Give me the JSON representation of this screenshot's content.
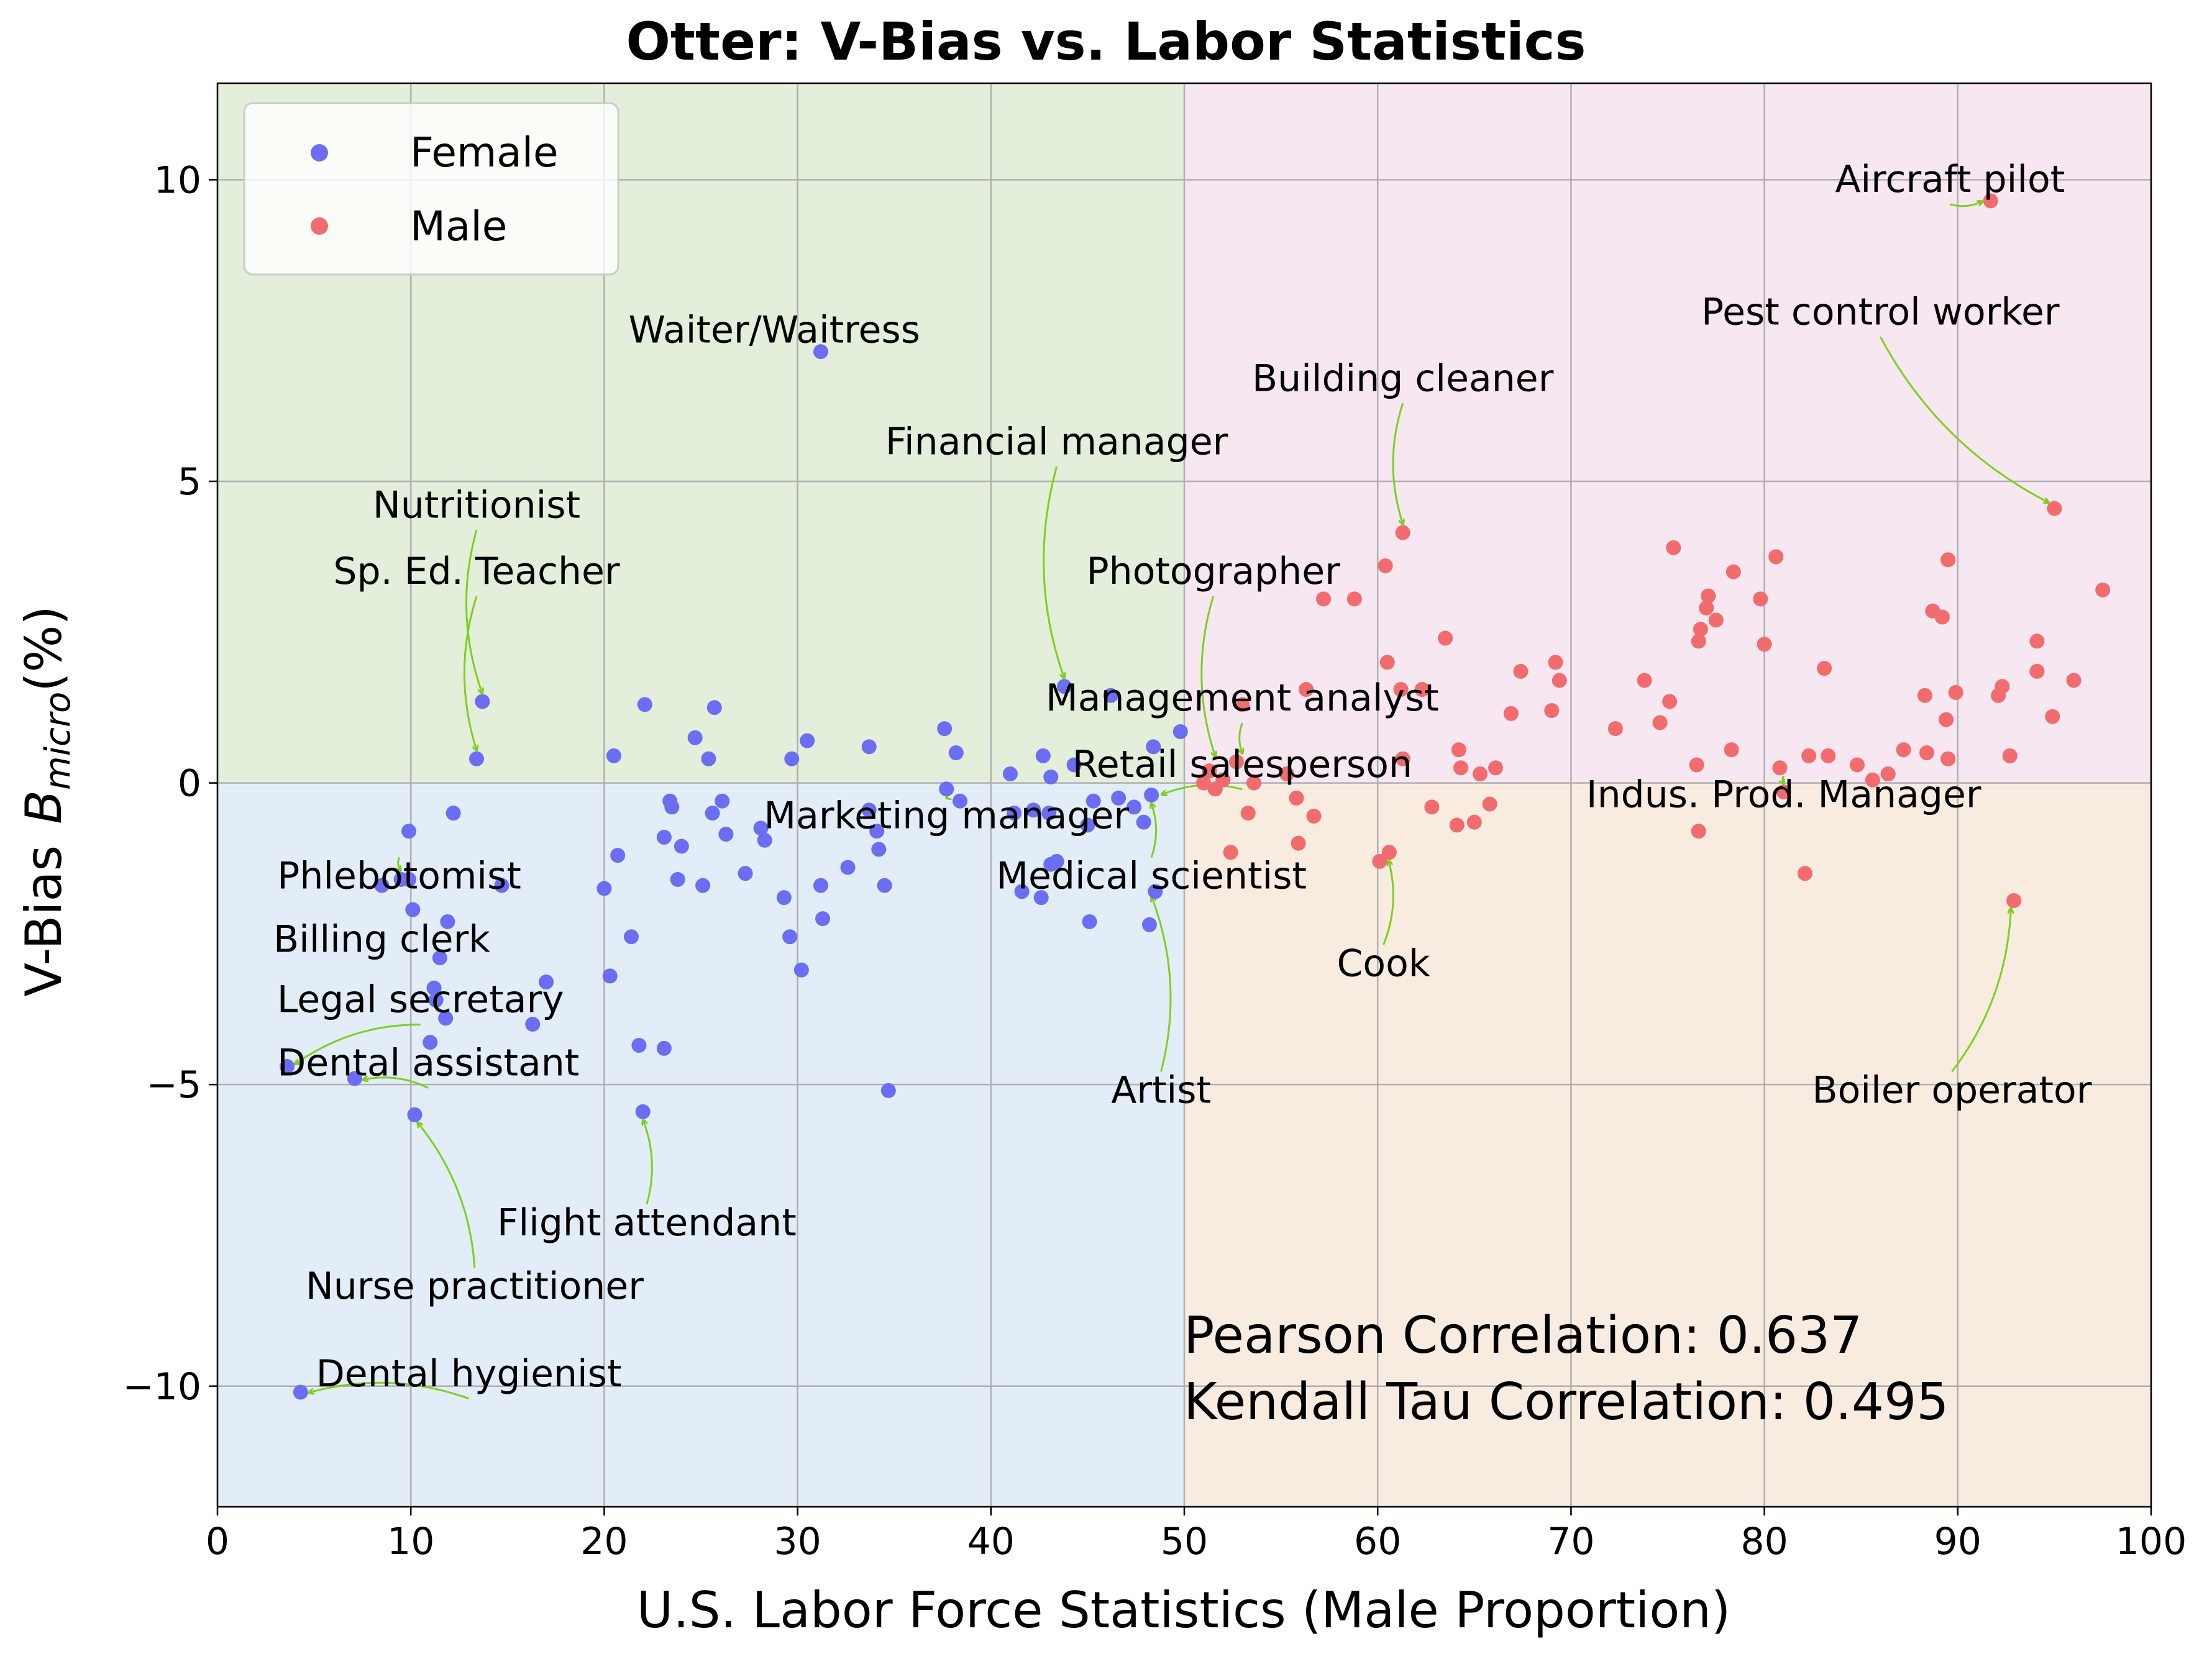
{
  "chart_data": {
    "type": "scatter",
    "title": "Otter: V-Bias vs. Labor Statistics",
    "xlabel": "U.S. Labor Force Statistics (Male Proportion)",
    "ylabel_text": "V-Bias",
    "ylabel_math_main": "B",
    "ylabel_math_sub": "micro",
    "ylabel_unit": "(%)",
    "xlim": [
      0,
      100
    ],
    "ylim": [
      -12,
      11.6
    ],
    "xticks": [
      0,
      10,
      20,
      30,
      40,
      50,
      60,
      70,
      80,
      90,
      100
    ],
    "yticks": [
      -10,
      -5,
      0,
      5,
      10
    ],
    "ytick_labels": [
      "−10",
      "−5",
      "0",
      "5",
      "10"
    ],
    "grid": true,
    "legend_position": "top-left",
    "quadrant_colors": {
      "upper_left": "#e3eedb",
      "upper_right": "#f6e7f0",
      "lower_left": "#e3edf7",
      "lower_right": "#f8ece0"
    },
    "annotation_arrow_color": "#7fcf1f",
    "stats": [
      "Pearson Correlation: 0.637",
      "Kendall Tau Correlation: 0.495"
    ],
    "series": [
      {
        "name": "Female",
        "color": "#6b6ef2",
        "points": [
          [
            4.3,
            -10.1
          ],
          [
            3.6,
            -4.7
          ],
          [
            7.1,
            -4.9
          ],
          [
            10.2,
            -5.5
          ],
          [
            8.5,
            -1.7
          ],
          [
            9.5,
            -1.6
          ],
          [
            9.9,
            -1.6
          ],
          [
            10.1,
            -2.1
          ],
          [
            9.9,
            -0.8
          ],
          [
            11.9,
            -2.3
          ],
          [
            12.2,
            -0.5
          ],
          [
            11.2,
            -3.4
          ],
          [
            11.3,
            -3.6
          ],
          [
            11.5,
            -2.9
          ],
          [
            11.8,
            -3.9
          ],
          [
            11.0,
            -4.3
          ],
          [
            13.4,
            0.4
          ],
          [
            13.7,
            1.35
          ],
          [
            14.7,
            -1.7
          ],
          [
            16.3,
            -4.0
          ],
          [
            17.0,
            -3.3
          ],
          [
            20.0,
            -1.75
          ],
          [
            20.3,
            -3.2
          ],
          [
            20.5,
            0.45
          ],
          [
            20.7,
            -1.2
          ],
          [
            21.4,
            -2.55
          ],
          [
            21.8,
            -4.35
          ],
          [
            22.0,
            -5.45
          ],
          [
            22.1,
            1.3
          ],
          [
            23.1,
            -0.9
          ],
          [
            23.1,
            -4.4
          ],
          [
            23.4,
            -0.3
          ],
          [
            23.5,
            -0.4
          ],
          [
            23.8,
            -1.6
          ],
          [
            24.0,
            -1.05
          ],
          [
            24.7,
            0.75
          ],
          [
            25.1,
            -1.7
          ],
          [
            25.4,
            0.4
          ],
          [
            25.6,
            -0.5
          ],
          [
            25.7,
            1.25
          ],
          [
            26.1,
            -0.3
          ],
          [
            26.3,
            -0.85
          ],
          [
            27.3,
            -1.5
          ],
          [
            28.1,
            -0.75
          ],
          [
            28.3,
            -0.95
          ],
          [
            29.3,
            -1.9
          ],
          [
            29.6,
            -2.55
          ],
          [
            29.7,
            0.4
          ],
          [
            30.2,
            -3.1
          ],
          [
            30.5,
            0.7
          ],
          [
            31.2,
            -1.7
          ],
          [
            31.3,
            -2.25
          ],
          [
            31.2,
            7.15
          ],
          [
            32.6,
            -1.4
          ],
          [
            33.7,
            0.6
          ],
          [
            33.7,
            -0.45
          ],
          [
            34.1,
            -0.8
          ],
          [
            34.2,
            -1.1
          ],
          [
            34.5,
            -1.7
          ],
          [
            34.7,
            -5.1
          ],
          [
            37.6,
            0.9
          ],
          [
            37.7,
            -0.1
          ],
          [
            38.2,
            0.5
          ],
          [
            38.4,
            -0.3
          ],
          [
            41.0,
            0.15
          ],
          [
            41.2,
            -0.5
          ],
          [
            41.6,
            -1.8
          ],
          [
            42.2,
            -0.45
          ],
          [
            42.6,
            -1.9
          ],
          [
            42.7,
            0.45
          ],
          [
            43.0,
            -0.5
          ],
          [
            43.1,
            -1.35
          ],
          [
            43.4,
            -1.3
          ],
          [
            43.1,
            0.1
          ],
          [
            43.8,
            1.6
          ],
          [
            44.3,
            0.3
          ],
          [
            45.0,
            -0.7
          ],
          [
            45.1,
            -2.3
          ],
          [
            45.3,
            -0.3
          ],
          [
            46.2,
            1.45
          ],
          [
            46.6,
            -0.25
          ],
          [
            47.4,
            -0.4
          ],
          [
            47.9,
            -0.65
          ],
          [
            48.2,
            -2.35
          ],
          [
            48.4,
            0.6
          ],
          [
            48.3,
            -0.2
          ],
          [
            48.5,
            -1.8
          ],
          [
            49.8,
            0.85
          ]
        ]
      },
      {
        "name": "Male",
        "color": "#f26b6e",
        "points": [
          [
            51.0,
            0.0
          ],
          [
            51.3,
            0.2
          ],
          [
            51.6,
            -0.1
          ],
          [
            52.0,
            0.05
          ],
          [
            52.4,
            -1.15
          ],
          [
            52.7,
            0.35
          ],
          [
            53.0,
            1.3
          ],
          [
            53.3,
            -0.5
          ],
          [
            53.6,
            0.0
          ],
          [
            55.3,
            0.15
          ],
          [
            55.8,
            -0.25
          ],
          [
            55.9,
            -1.0
          ],
          [
            56.3,
            1.55
          ],
          [
            56.7,
            -0.55
          ],
          [
            57.2,
            3.05
          ],
          [
            58.8,
            3.05
          ],
          [
            60.1,
            -1.3
          ],
          [
            60.4,
            3.6
          ],
          [
            60.5,
            2.0
          ],
          [
            60.6,
            -1.15
          ],
          [
            61.2,
            1.55
          ],
          [
            61.3,
            0.4
          ],
          [
            61.3,
            4.15
          ],
          [
            62.3,
            1.55
          ],
          [
            62.8,
            -0.4
          ],
          [
            63.5,
            2.4
          ],
          [
            64.1,
            -0.7
          ],
          [
            64.2,
            0.55
          ],
          [
            64.3,
            0.25
          ],
          [
            65.0,
            -0.65
          ],
          [
            65.3,
            0.15
          ],
          [
            65.8,
            -0.35
          ],
          [
            66.1,
            0.25
          ],
          [
            66.9,
            1.15
          ],
          [
            67.4,
            1.85
          ],
          [
            69.0,
            1.2
          ],
          [
            69.2,
            2.0
          ],
          [
            69.4,
            1.7
          ],
          [
            72.3,
            0.9
          ],
          [
            73.8,
            1.7
          ],
          [
            74.6,
            1.0
          ],
          [
            75.1,
            1.35
          ],
          [
            75.3,
            3.9
          ],
          [
            76.5,
            0.3
          ],
          [
            76.6,
            2.35
          ],
          [
            76.6,
            -0.8
          ],
          [
            76.7,
            2.55
          ],
          [
            77.0,
            2.9
          ],
          [
            77.1,
            3.1
          ],
          [
            77.5,
            2.7
          ],
          [
            78.3,
            0.55
          ],
          [
            78.4,
            3.5
          ],
          [
            79.8,
            3.05
          ],
          [
            80.0,
            2.3
          ],
          [
            80.6,
            3.75
          ],
          [
            80.8,
            0.25
          ],
          [
            81.0,
            -0.15
          ],
          [
            82.1,
            -1.5
          ],
          [
            82.3,
            0.45
          ],
          [
            83.3,
            0.45
          ],
          [
            83.1,
            1.9
          ],
          [
            84.8,
            0.3
          ],
          [
            85.6,
            0.05
          ],
          [
            86.4,
            0.15
          ],
          [
            87.2,
            0.55
          ],
          [
            88.3,
            1.45
          ],
          [
            88.4,
            0.5
          ],
          [
            88.7,
            2.85
          ],
          [
            89.2,
            2.75
          ],
          [
            89.4,
            1.05
          ],
          [
            89.5,
            3.7
          ],
          [
            89.5,
            0.4
          ],
          [
            89.9,
            1.5
          ],
          [
            91.7,
            9.65
          ],
          [
            92.1,
            1.45
          ],
          [
            92.3,
            1.6
          ],
          [
            92.7,
            0.45
          ],
          [
            92.9,
            -1.95
          ],
          [
            94.1,
            2.35
          ],
          [
            94.1,
            1.85
          ],
          [
            94.9,
            1.1
          ],
          [
            95.0,
            4.55
          ],
          [
            96.0,
            1.7
          ],
          [
            97.5,
            3.2
          ]
        ]
      }
    ],
    "annotations": [
      {
        "text": "Aircraft pilot",
        "point": [
          91.7,
          9.65
        ],
        "label": [
          89.6,
          9.8
        ],
        "anchor": "middle",
        "arrow": true
      },
      {
        "text": "Pest control worker",
        "point": [
          95.0,
          4.55
        ],
        "label": [
          86.0,
          7.6
        ],
        "anchor": "middle",
        "arrow": true
      },
      {
        "text": "Building cleaner",
        "point": [
          61.3,
          4.15
        ],
        "label": [
          61.3,
          6.5
        ],
        "anchor": "middle",
        "arrow": true
      },
      {
        "text": "Waiter/Waitress",
        "point": [
          31.2,
          7.15
        ],
        "label": [
          28.8,
          7.3
        ],
        "anchor": "middle",
        "arrow": false
      },
      {
        "text": "Financial manager",
        "point": [
          43.8,
          1.6
        ],
        "label": [
          43.4,
          5.45
        ],
        "anchor": "middle",
        "arrow": true
      },
      {
        "text": "Nutritionist",
        "point": [
          13.7,
          1.35
        ],
        "label": [
          13.4,
          4.4
        ],
        "anchor": "middle",
        "arrow": true
      },
      {
        "text": "Sp. Ed. Teacher",
        "point": [
          13.4,
          0.4
        ],
        "label": [
          13.4,
          3.3
        ],
        "anchor": "middle",
        "arrow": true
      },
      {
        "text": "Photographer",
        "point": [
          51.6,
          0.3
        ],
        "label": [
          51.5,
          3.3
        ],
        "anchor": "middle",
        "arrow": true
      },
      {
        "text": "Management analyst",
        "point": [
          53.0,
          0.35
        ],
        "label": [
          53.0,
          1.2
        ],
        "anchor": "middle",
        "arrow": true
      },
      {
        "text": "Retail salesperson",
        "point": [
          48.4,
          -0.2
        ],
        "label": [
          53.0,
          0.1
        ],
        "anchor": "middle",
        "arrow": true
      },
      {
        "text": "Indus. Prod. Manager",
        "point": [
          81.0,
          -0.15
        ],
        "label": [
          81.0,
          -0.4
        ],
        "anchor": "middle",
        "arrow": true
      },
      {
        "text": "Marketing manager",
        "point": [
          37.7,
          -0.1
        ],
        "label": [
          37.7,
          -0.75
        ],
        "anchor": "middle",
        "arrow": true
      },
      {
        "text": "Medical scientist",
        "point": [
          48.3,
          -0.2
        ],
        "label": [
          48.3,
          -1.75
        ],
        "anchor": "middle",
        "arrow": true
      },
      {
        "text": "Phlebotomist",
        "point": [
          9.5,
          -1.6
        ],
        "label": [
          9.4,
          -1.75
        ],
        "anchor": "middle",
        "arrow": true
      },
      {
        "text": "Cook",
        "point": [
          60.6,
          -1.15
        ],
        "label": [
          60.3,
          -3.2
        ],
        "anchor": "middle",
        "arrow": true
      },
      {
        "text": "Billing clerk",
        "point": [
          8.5,
          -1.7
        ],
        "label": [
          8.5,
          -2.8
        ],
        "anchor": "middle",
        "arrow": false
      },
      {
        "text": "Legal secretary",
        "point": [
          3.6,
          -4.7
        ],
        "label": [
          10.5,
          -3.8
        ],
        "anchor": "middle",
        "arrow": true
      },
      {
        "text": "Dental assistant",
        "point": [
          7.1,
          -4.9
        ],
        "label": [
          10.9,
          -4.85
        ],
        "anchor": "middle",
        "arrow": true
      },
      {
        "text": "Artist",
        "point": [
          48.3,
          -1.75
        ],
        "label": [
          48.8,
          -5.3
        ],
        "anchor": "middle",
        "arrow": true
      },
      {
        "text": "Boiler operator",
        "point": [
          92.9,
          -1.95
        ],
        "label": [
          89.7,
          -5.3
        ],
        "anchor": "middle",
        "arrow": true
      },
      {
        "text": "Flight attendant",
        "point": [
          22.0,
          -5.45
        ],
        "label": [
          22.2,
          -7.5
        ],
        "anchor": "middle",
        "arrow": true
      },
      {
        "text": "Nurse practitioner",
        "point": [
          10.2,
          -5.5
        ],
        "label": [
          13.3,
          -8.55
        ],
        "anchor": "middle",
        "arrow": true
      },
      {
        "text": "Dental hygienist",
        "point": [
          4.3,
          -10.1
        ],
        "label": [
          13.0,
          -10.0
        ],
        "anchor": "middle",
        "arrow": true
      }
    ]
  }
}
